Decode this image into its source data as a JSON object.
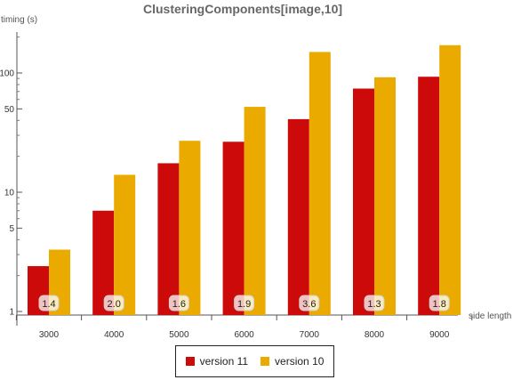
{
  "chart_data": {
    "type": "bar",
    "title": "ClusteringComponents[image,10]",
    "xlabel": "side length",
    "ylabel": "timing (s)",
    "y_scale": "log",
    "ylim": [
      0.85,
      300
    ],
    "yticks": [
      1,
      5,
      10,
      50,
      100
    ],
    "categories": [
      "3000",
      "4000",
      "5000",
      "6000",
      "7000",
      "8000",
      "9000"
    ],
    "series": [
      {
        "name": "version 11",
        "color": "#cc0a0a",
        "values": [
          2.4,
          7.0,
          17.5,
          26.5,
          41.0,
          74.0,
          93.0
        ]
      },
      {
        "name": "version 10",
        "color": "#ebaa00",
        "values": [
          3.3,
          14.0,
          27.0,
          52.0,
          150.0,
          92.0,
          171.0
        ]
      }
    ],
    "ratio_labels": [
      "1.4",
      "2.0",
      "1.6",
      "1.9",
      "3.6",
      "1.3",
      "1.8"
    ],
    "grid": false,
    "legend_position": "bottom"
  }
}
